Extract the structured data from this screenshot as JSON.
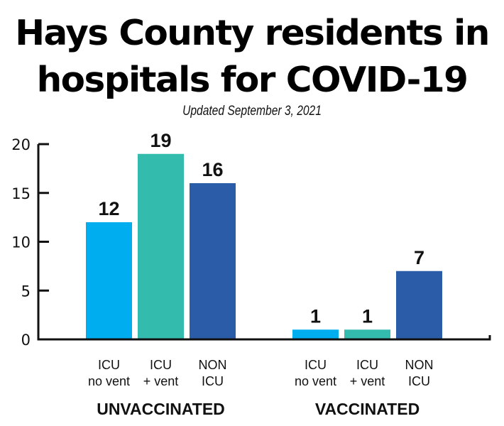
{
  "chart_data": {
    "type": "bar",
    "title": "Hays County residents in hospitals for COVID-19",
    "title_lines": [
      "Hays County residents in",
      "hospitals for COVID-19"
    ],
    "subtitle": "Updated September 3, 2021",
    "xlabel": "",
    "ylabel": "",
    "ylim": [
      0,
      20
    ],
    "yticks": [
      0,
      5,
      10,
      15,
      20
    ],
    "grid": false,
    "legend": "none",
    "groups": [
      {
        "name": "UNVACCINATED",
        "bars": [
          {
            "category": [
              "ICU",
              "no vent"
            ],
            "value": 12,
            "color": "#00AEEF"
          },
          {
            "category": [
              "ICU",
              "+ vent"
            ],
            "value": 19,
            "color": "#33BBAD"
          },
          {
            "category": [
              "NON",
              "ICU"
            ],
            "value": 16,
            "color": "#2B5CA8"
          }
        ]
      },
      {
        "name": "VACCINATED",
        "bars": [
          {
            "category": [
              "ICU",
              "no vent"
            ],
            "value": 1,
            "color": "#00AEEF"
          },
          {
            "category": [
              "ICU",
              "+ vent"
            ],
            "value": 1,
            "color": "#33BBAD"
          },
          {
            "category": [
              "NON",
              "ICU"
            ],
            "value": 7,
            "color": "#2B5CA8"
          }
        ]
      }
    ]
  }
}
